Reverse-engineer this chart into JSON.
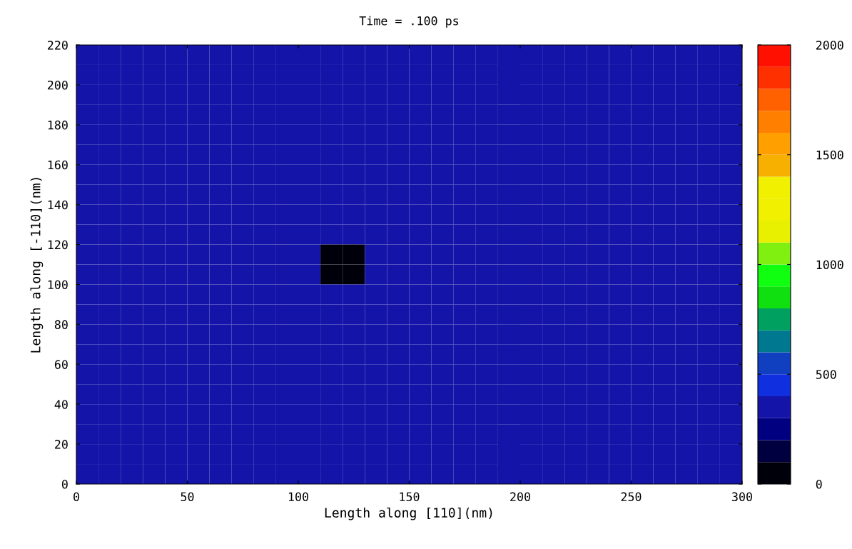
{
  "chart_data": {
    "type": "heatmap",
    "title": "Time = .100 ps",
    "xlabel": "Length along [110](nm)",
    "ylabel": "Length along [-110](nm)",
    "x": [
      5,
      15,
      25,
      35,
      45,
      55,
      65,
      75,
      85,
      95,
      105,
      115,
      125,
      135,
      145,
      155,
      165,
      175,
      185,
      195,
      205,
      215,
      225,
      235,
      245,
      255,
      265,
      275,
      285,
      295
    ],
    "y": [
      215,
      205,
      195,
      185,
      175,
      165,
      155,
      145,
      135,
      125,
      115,
      105,
      95,
      85,
      75,
      65,
      55,
      45,
      35,
      25,
      15,
      5
    ],
    "cells": [
      [
        300,
        300,
        300,
        300,
        300,
        300,
        300,
        300,
        300,
        300,
        300,
        300,
        300,
        300,
        300,
        300,
        300,
        300,
        300,
        300,
        300,
        300,
        300,
        300,
        300,
        300,
        300,
        300,
        300,
        300
      ],
      [
        300,
        300,
        300,
        300,
        300,
        300,
        300,
        300,
        300,
        300,
        300,
        300,
        300,
        300,
        300,
        300,
        300,
        300,
        300,
        300,
        300,
        300,
        300,
        300,
        300,
        300,
        300,
        300,
        300,
        300
      ],
      [
        300,
        300,
        300,
        300,
        300,
        300,
        300,
        300,
        300,
        300,
        300,
        300,
        300,
        300,
        300,
        300,
        300,
        300,
        300,
        300,
        300,
        300,
        300,
        300,
        300,
        300,
        300,
        300,
        300,
        300
      ],
      [
        300,
        300,
        300,
        300,
        300,
        300,
        300,
        300,
        300,
        300,
        300,
        300,
        300,
        300,
        300,
        300,
        300,
        300,
        300,
        300,
        300,
        300,
        300,
        300,
        300,
        300,
        300,
        300,
        300,
        300
      ],
      [
        300,
        300,
        300,
        300,
        300,
        300,
        300,
        300,
        300,
        300,
        300,
        300,
        300,
        300,
        300,
        300,
        300,
        300,
        300,
        300,
        300,
        300,
        300,
        300,
        300,
        300,
        300,
        300,
        300,
        300
      ],
      [
        300,
        300,
        300,
        300,
        300,
        300,
        300,
        300,
        300,
        300,
        300,
        300,
        300,
        300,
        300,
        300,
        300,
        300,
        300,
        300,
        300,
        300,
        300,
        300,
        300,
        300,
        300,
        300,
        300,
        300
      ],
      [
        300,
        300,
        300,
        300,
        300,
        300,
        300,
        300,
        300,
        300,
        300,
        300,
        300,
        300,
        300,
        300,
        300,
        300,
        300,
        300,
        300,
        300,
        300,
        300,
        300,
        300,
        300,
        300,
        300,
        300
      ],
      [
        300,
        300,
        300,
        300,
        300,
        300,
        300,
        300,
        300,
        300,
        300,
        300,
        300,
        300,
        300,
        300,
        300,
        300,
        300,
        300,
        300,
        300,
        300,
        300,
        300,
        300,
        300,
        300,
        300,
        300
      ],
      [
        300,
        300,
        300,
        300,
        300,
        300,
        300,
        300,
        300,
        300,
        300,
        300,
        300,
        300,
        300,
        300,
        300,
        300,
        300,
        300,
        300,
        300,
        300,
        300,
        300,
        300,
        300,
        300,
        300,
        300
      ],
      [
        300,
        300,
        300,
        300,
        300,
        300,
        300,
        300,
        300,
        300,
        300,
        300,
        300,
        300,
        300,
        300,
        300,
        300,
        300,
        300,
        300,
        300,
        300,
        300,
        300,
        300,
        300,
        300,
        300,
        300
      ],
      [
        300,
        300,
        300,
        300,
        300,
        300,
        300,
        300,
        300,
        300,
        300,
        0,
        0,
        300,
        300,
        300,
        300,
        300,
        300,
        300,
        300,
        300,
        300,
        300,
        300,
        300,
        300,
        300,
        300,
        300
      ],
      [
        300,
        300,
        300,
        300,
        300,
        300,
        300,
        300,
        300,
        300,
        300,
        0,
        0,
        300,
        300,
        300,
        300,
        300,
        300,
        300,
        300,
        300,
        300,
        300,
        300,
        300,
        300,
        300,
        300,
        300
      ],
      [
        300,
        300,
        300,
        300,
        300,
        300,
        300,
        300,
        300,
        300,
        300,
        300,
        300,
        300,
        300,
        300,
        300,
        300,
        300,
        300,
        300,
        300,
        300,
        300,
        300,
        300,
        300,
        300,
        300,
        300
      ],
      [
        300,
        300,
        300,
        300,
        300,
        300,
        300,
        300,
        300,
        300,
        300,
        300,
        300,
        300,
        300,
        300,
        300,
        300,
        300,
        300,
        300,
        300,
        300,
        300,
        300,
        300,
        300,
        300,
        300,
        300
      ],
      [
        300,
        300,
        300,
        300,
        300,
        300,
        300,
        300,
        300,
        300,
        300,
        300,
        300,
        300,
        300,
        300,
        300,
        300,
        300,
        300,
        300,
        300,
        300,
        300,
        300,
        300,
        300,
        300,
        300,
        300
      ],
      [
        300,
        300,
        300,
        300,
        300,
        300,
        300,
        300,
        300,
        300,
        300,
        300,
        300,
        300,
        300,
        300,
        300,
        300,
        300,
        300,
        300,
        300,
        300,
        300,
        300,
        300,
        300,
        300,
        300,
        300
      ],
      [
        300,
        300,
        300,
        300,
        300,
        300,
        300,
        300,
        300,
        300,
        300,
        300,
        300,
        300,
        300,
        300,
        300,
        300,
        300,
        300,
        300,
        300,
        300,
        300,
        300,
        300,
        300,
        300,
        300,
        300
      ],
      [
        300,
        300,
        300,
        300,
        300,
        300,
        300,
        300,
        300,
        300,
        300,
        300,
        300,
        300,
        300,
        300,
        300,
        300,
        300,
        300,
        300,
        300,
        300,
        300,
        300,
        300,
        300,
        300,
        300,
        300
      ],
      [
        300,
        300,
        300,
        300,
        300,
        300,
        300,
        300,
        300,
        300,
        300,
        300,
        300,
        300,
        300,
        300,
        300,
        300,
        300,
        300,
        300,
        300,
        300,
        300,
        300,
        300,
        300,
        300,
        300,
        300
      ],
      [
        300,
        300,
        300,
        300,
        300,
        300,
        300,
        300,
        300,
        300,
        300,
        300,
        300,
        300,
        300,
        300,
        300,
        300,
        300,
        300,
        300,
        300,
        300,
        300,
        300,
        300,
        300,
        300,
        300,
        300
      ],
      [
        300,
        300,
        300,
        300,
        300,
        300,
        300,
        300,
        300,
        300,
        300,
        300,
        300,
        300,
        300,
        300,
        300,
        300,
        300,
        300,
        300,
        300,
        300,
        300,
        300,
        300,
        300,
        300,
        300,
        300
      ],
      [
        300,
        300,
        300,
        300,
        300,
        300,
        300,
        300,
        300,
        300,
        300,
        300,
        300,
        300,
        300,
        300,
        300,
        300,
        300,
        300,
        300,
        300,
        300,
        300,
        300,
        300,
        300,
        300,
        300,
        300
      ]
    ],
    "colors": [
      "#00000a",
      "#000040",
      "#000080",
      "#1414a8",
      "#1030e0",
      "#1040c0",
      "#007890",
      "#00a060",
      "#10e010",
      "#10ff10",
      "#80f010",
      "#e8f000",
      "#f0f000",
      "#f0f000",
      "#f8b000",
      "#ffa000",
      "#ff8000",
      "#ff6000",
      "#ff3000",
      "#ff1000"
    ],
    "xlim": [
      0,
      300
    ],
    "ylim": [
      0,
      220
    ],
    "xticks": [
      0,
      50,
      100,
      150,
      200,
      250,
      300
    ],
    "yticks": [
      0,
      20,
      40,
      60,
      80,
      100,
      120,
      140,
      160,
      180,
      200,
      220
    ],
    "clim": [
      0,
      2000
    ],
    "cticks": [
      0,
      500,
      1000,
      1500,
      2000
    ],
    "grid": false
  }
}
